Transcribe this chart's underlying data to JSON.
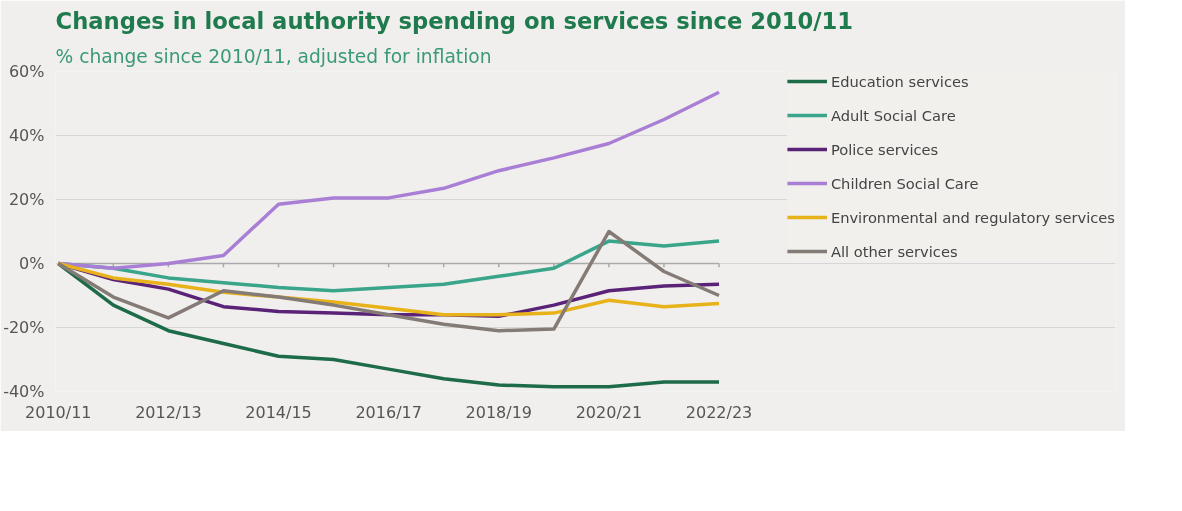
{
  "chart_data": {
    "type": "line",
    "title": "Changes in local authority spending on services since 2010/11",
    "subtitle": "% change since 2010/11, adjusted for inflation",
    "categories": [
      "2010/11",
      null,
      "2012/13",
      null,
      "2014/15",
      null,
      "2016/17",
      null,
      "2018/19",
      null,
      "2020/21",
      null,
      "2022/23"
    ],
    "series": [
      {
        "name": "Education services",
        "color": "#1e6b4a",
        "values": [
          0,
          -13,
          -21,
          -25,
          -29,
          -30,
          -33,
          -36,
          -38,
          -38.5,
          -38.5,
          -37,
          -37
        ]
      },
      {
        "name": "Adult Social Care",
        "color": "#3aa58a",
        "values": [
          0,
          -1.5,
          -4.5,
          -6,
          -7.5,
          -8.5,
          -7.5,
          -6.5,
          -4,
          -1.5,
          7,
          5.5,
          7
        ]
      },
      {
        "name": "Police services",
        "color": "#5a2377",
        "values": [
          0,
          -5,
          -8,
          -13.5,
          -15,
          -15.5,
          -16,
          -16,
          -16.5,
          -13,
          -8.5,
          -7,
          -6.5
        ]
      },
      {
        "name": "Children Social Care",
        "color": "#a97fd6",
        "values": [
          0,
          -1.5,
          0,
          2.5,
          18.5,
          20.5,
          20.5,
          23.5,
          29,
          33,
          37.5,
          45,
          53.5
        ]
      },
      {
        "name": "Environmental and regulatory services",
        "color": "#e8b21a",
        "values": [
          0,
          -4.5,
          -6.5,
          -9,
          -10.5,
          -12,
          -14,
          -16,
          -16,
          -15.5,
          -11.5,
          -13.5,
          -12.5
        ]
      },
      {
        "name": "All other services",
        "color": "#857b76",
        "values": [
          0,
          -10.5,
          -17,
          -8.5,
          -10.5,
          -13,
          -16,
          -19,
          -21,
          -20.5,
          10,
          -2.5,
          -10
        ]
      }
    ],
    "ylim": [
      -40,
      60
    ],
    "yticks": [
      {
        "value": -40,
        "label": "-40%"
      },
      {
        "value": -20,
        "label": "-20%"
      },
      {
        "value": 0,
        "label": "0%"
      },
      {
        "value": 20,
        "label": "20%"
      },
      {
        "value": 40,
        "label": "40%"
      },
      {
        "value": 60,
        "label": "60%"
      }
    ],
    "grid": "y",
    "legend": "right",
    "marker": "none",
    "line_style": "solid"
  }
}
